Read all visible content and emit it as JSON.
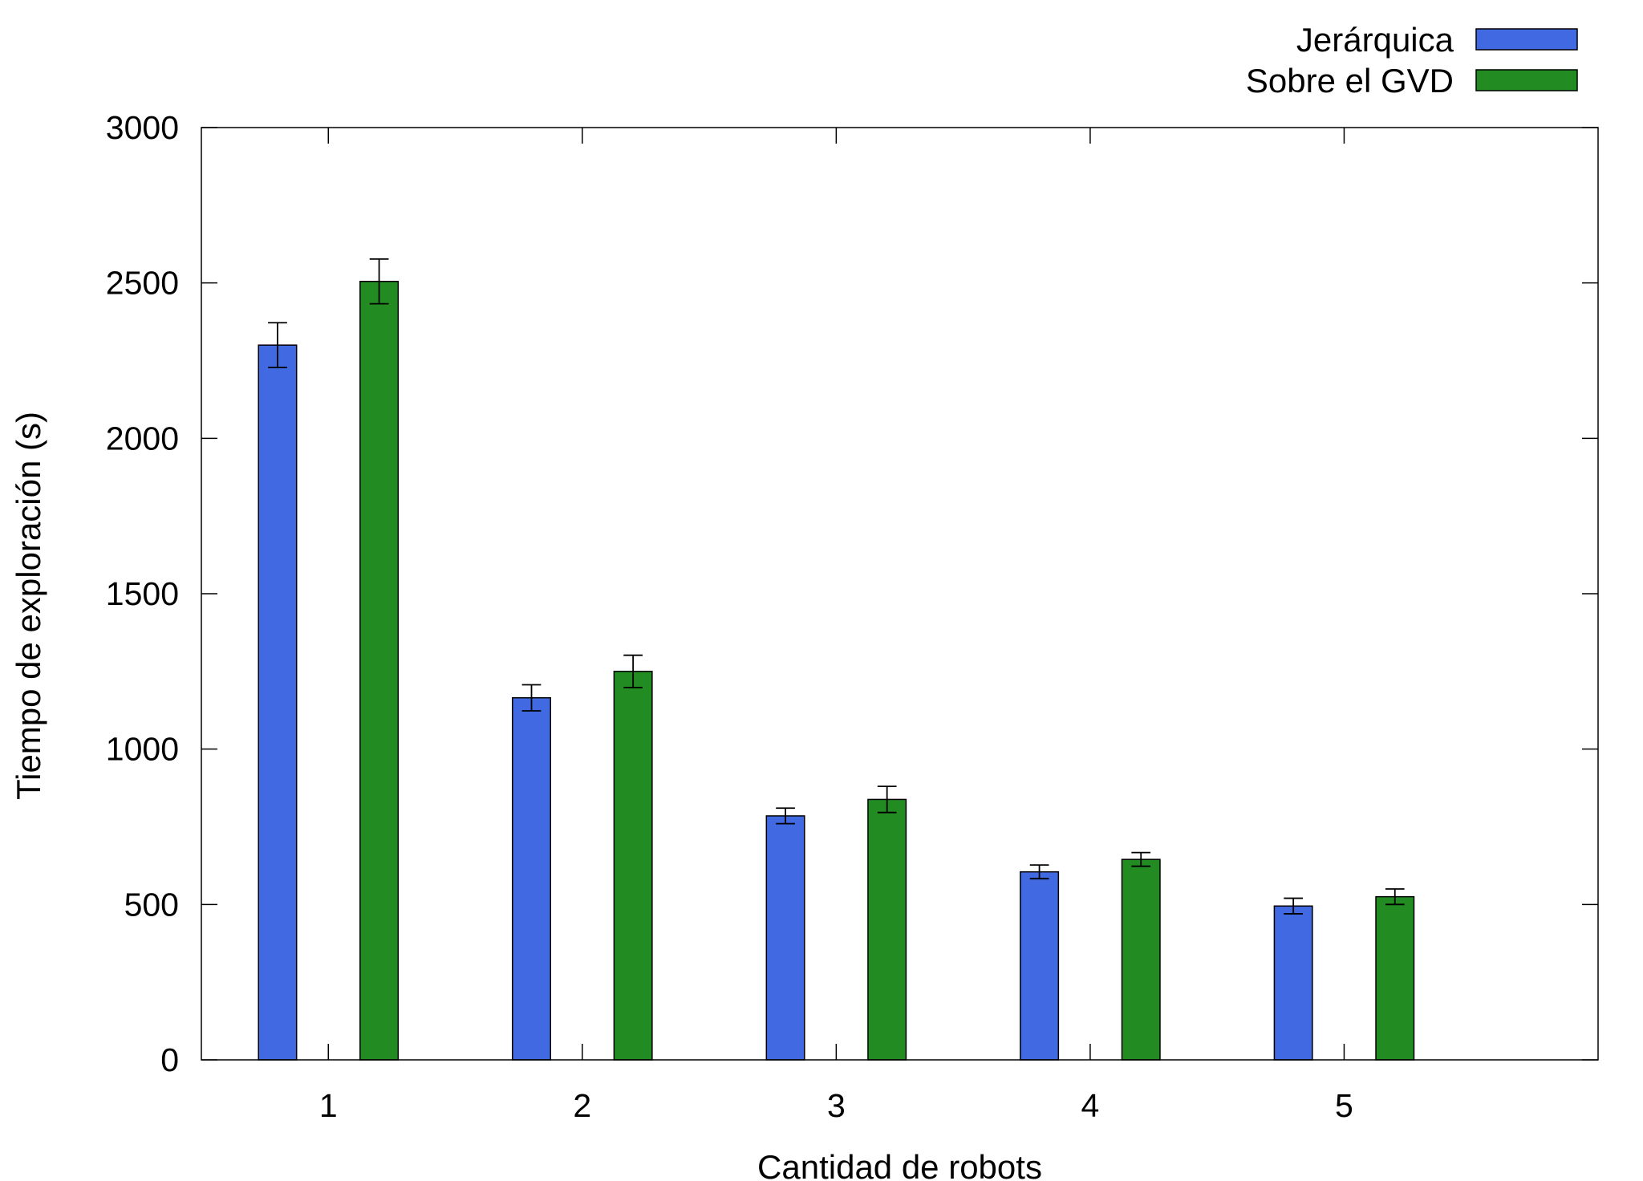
{
  "chart_data": {
    "type": "bar",
    "categories": [
      "1",
      "2",
      "3",
      "4",
      "5"
    ],
    "series": [
      {
        "name": "Jerárquica",
        "color": "#4169e1",
        "values": [
          2300,
          1165,
          785,
          605,
          495
        ],
        "errors": [
          72,
          42,
          25,
          22,
          25
        ]
      },
      {
        "name": "Sobre el GVD",
        "color": "#228b22",
        "values": [
          2505,
          1250,
          838,
          645,
          525
        ],
        "errors": [
          72,
          52,
          42,
          22,
          25
        ]
      }
    ],
    "xlabel": "Cantidad de robots",
    "ylabel": "Tiempo de exploración (s)",
    "ylim": [
      0,
      3000
    ],
    "yticks": [
      0,
      500,
      1000,
      1500,
      2000,
      2500,
      3000
    ],
    "grid": false,
    "legend_position": "top-right"
  }
}
